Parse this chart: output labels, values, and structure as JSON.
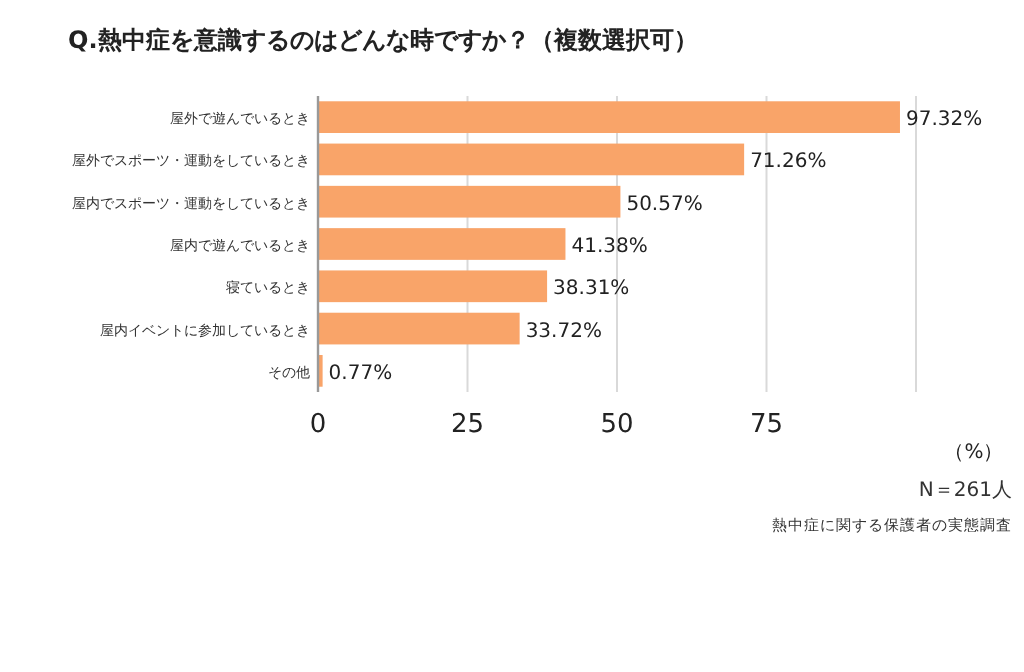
{
  "chart_data": {
    "type": "bar",
    "orientation": "horizontal",
    "title": "Q.熱中症を意識するのはどんな時ですか？（複数選択可）",
    "categories": [
      "屋外で遊んでいるとき",
      "屋外でスポーツ・運動をしているとき",
      "屋内でスポーツ・運動をしているとき",
      "屋内で遊んでいるとき",
      "寝ているとき",
      "屋内イベントに参加しているとき",
      "その他"
    ],
    "values": [
      97.32,
      71.26,
      50.57,
      41.38,
      38.31,
      33.72,
      0.77
    ],
    "value_labels": [
      "97.32%",
      "71.26%",
      "50.57%",
      "41.38%",
      "38.31%",
      "33.72%",
      "0.77%"
    ],
    "color": "#f9a469",
    "xlim": [
      0,
      100
    ],
    "xticks": [
      0,
      25,
      50,
      75,
      {
        "value": 100,
        "label": null
      }
    ],
    "grid": "x",
    "xlabel": "（%）",
    "annotations": [
      "N＝261人",
      "熱中症に関する保護者の実態調査"
    ]
  }
}
